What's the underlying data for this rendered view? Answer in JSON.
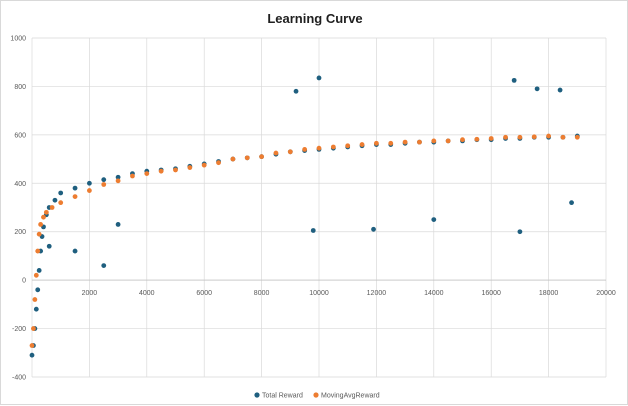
{
  "chart_data": {
    "type": "scatter",
    "title": "Learning Curve",
    "xlabel": "",
    "ylabel": "",
    "xlim": [
      0,
      20000
    ],
    "ylim": [
      -400,
      1000
    ],
    "x_ticks": [
      2000,
      4000,
      6000,
      8000,
      10000,
      12000,
      14000,
      16000,
      18000,
      20000
    ],
    "y_ticks": [
      -400,
      -200,
      0,
      200,
      400,
      600,
      800,
      1000
    ],
    "grid": true,
    "legend_position": "bottom",
    "series": [
      {
        "name": "Total Reward",
        "color": "#1f5f7f",
        "marker": "circle",
        "points": [
          [
            0,
            -310
          ],
          [
            50,
            -270
          ],
          [
            100,
            -200
          ],
          [
            150,
            -120
          ],
          [
            200,
            -40
          ],
          [
            250,
            40
          ],
          [
            300,
            120
          ],
          [
            350,
            180
          ],
          [
            400,
            220
          ],
          [
            500,
            270
          ],
          [
            600,
            300
          ],
          [
            800,
            330
          ],
          [
            1000,
            360
          ],
          [
            1500,
            380
          ],
          [
            2000,
            400
          ],
          [
            2500,
            415
          ],
          [
            3000,
            425
          ],
          [
            3500,
            440
          ],
          [
            4000,
            450
          ],
          [
            4500,
            455
          ],
          [
            5000,
            460
          ],
          [
            5500,
            470
          ],
          [
            6000,
            480
          ],
          [
            6500,
            490
          ],
          [
            7000,
            500
          ],
          [
            7500,
            505
          ],
          [
            8000,
            510
          ],
          [
            8500,
            520
          ],
          [
            9000,
            530
          ],
          [
            9500,
            535
          ],
          [
            10000,
            540
          ],
          [
            10500,
            545
          ],
          [
            11000,
            550
          ],
          [
            11500,
            555
          ],
          [
            12000,
            560
          ],
          [
            12500,
            560
          ],
          [
            13000,
            565
          ],
          [
            13500,
            570
          ],
          [
            14000,
            570
          ],
          [
            14500,
            575
          ],
          [
            15000,
            575
          ],
          [
            15500,
            580
          ],
          [
            16000,
            580
          ],
          [
            16500,
            585
          ],
          [
            17000,
            585
          ],
          [
            17500,
            590
          ],
          [
            18000,
            590
          ],
          [
            18500,
            590
          ],
          [
            19000,
            595
          ],
          [
            10000,
            835
          ],
          [
            16800,
            825
          ],
          [
            9200,
            780
          ],
          [
            17600,
            790
          ],
          [
            18400,
            785
          ],
          [
            2500,
            60
          ],
          [
            17000,
            200
          ],
          [
            600,
            140
          ],
          [
            1500,
            120
          ],
          [
            18800,
            320
          ],
          [
            11900,
            210
          ],
          [
            9800,
            205
          ],
          [
            14000,
            250
          ],
          [
            3000,
            230
          ]
        ]
      },
      {
        "name": "MovingAvgReward",
        "color": "#ed7d31",
        "marker": "circle",
        "points": [
          [
            0,
            -270
          ],
          [
            50,
            -200
          ],
          [
            100,
            -80
          ],
          [
            150,
            20
          ],
          [
            200,
            120
          ],
          [
            250,
            190
          ],
          [
            300,
            230
          ],
          [
            400,
            260
          ],
          [
            500,
            280
          ],
          [
            700,
            300
          ],
          [
            1000,
            320
          ],
          [
            1500,
            345
          ],
          [
            2000,
            370
          ],
          [
            2500,
            395
          ],
          [
            3000,
            410
          ],
          [
            3500,
            430
          ],
          [
            4000,
            440
          ],
          [
            4500,
            450
          ],
          [
            5000,
            455
          ],
          [
            5500,
            465
          ],
          [
            6000,
            475
          ],
          [
            6500,
            485
          ],
          [
            7000,
            500
          ],
          [
            7500,
            505
          ],
          [
            8000,
            510
          ],
          [
            8500,
            525
          ],
          [
            9000,
            530
          ],
          [
            9500,
            540
          ],
          [
            10000,
            545
          ],
          [
            10500,
            550
          ],
          [
            11000,
            555
          ],
          [
            11500,
            560
          ],
          [
            12000,
            565
          ],
          [
            12500,
            565
          ],
          [
            13000,
            570
          ],
          [
            13500,
            570
          ],
          [
            14000,
            575
          ],
          [
            14500,
            575
          ],
          [
            15000,
            580
          ],
          [
            15500,
            582
          ],
          [
            16000,
            585
          ],
          [
            16500,
            590
          ],
          [
            17000,
            590
          ],
          [
            17500,
            592
          ],
          [
            18000,
            595
          ],
          [
            18500,
            590
          ],
          [
            19000,
            590
          ]
        ]
      }
    ]
  }
}
